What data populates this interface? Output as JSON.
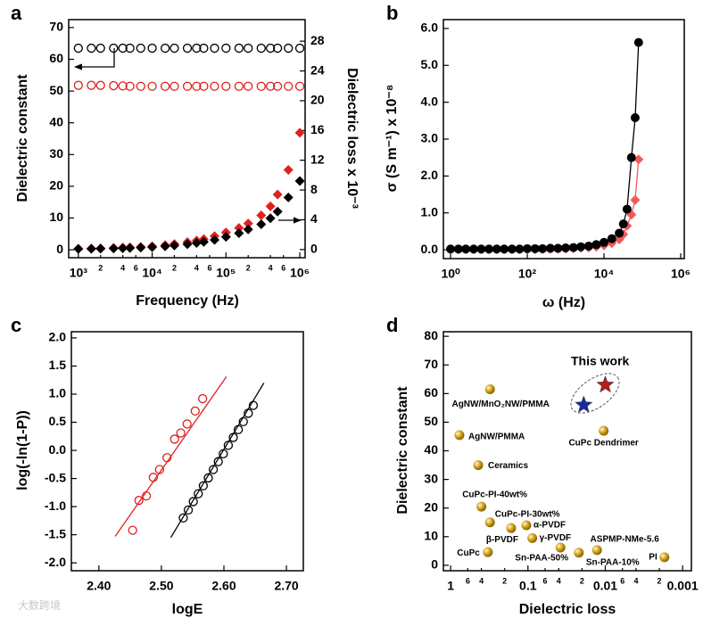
{
  "chart_data": [
    {
      "type": "scatter",
      "panel": "a",
      "xlabel": "Frequency (Hz)",
      "ylabel": "Dielectric constant",
      "y2label": "Dielectric loss x 10⁻³",
      "xlog": true,
      "xlim": [
        740,
        1180000
      ],
      "ylim": [
        -2.5,
        72.5
      ],
      "y2lim": [
        -1.1,
        30.9
      ],
      "xticks": [
        {
          "value": 1000,
          "label": "10³"
        },
        {
          "value": 2000,
          "label": "2"
        },
        {
          "value": 4000,
          "label": "4"
        },
        {
          "value": 6000,
          "label": "6"
        },
        {
          "value": 10000,
          "label": "10⁴"
        },
        {
          "value": 20000,
          "label": "2"
        },
        {
          "value": 40000,
          "label": "4"
        },
        {
          "value": 60000,
          "label": "6"
        },
        {
          "value": 100000,
          "label": "10⁵"
        },
        {
          "value": 200000,
          "label": "2"
        },
        {
          "value": 400000,
          "label": "4"
        },
        {
          "value": 600000,
          "label": "6"
        },
        {
          "value": 1000000,
          "label": "10⁶"
        }
      ],
      "yticks": [
        0,
        10,
        20,
        30,
        40,
        50,
        60,
        70
      ],
      "y2ticks": [
        0,
        4,
        8,
        12,
        16,
        20,
        24,
        28
      ],
      "x": [
        1000,
        1500,
        2000,
        3000,
        4000,
        5000,
        7000,
        10000,
        15000,
        20000,
        30000,
        40000,
        50000,
        70000,
        100000,
        150000,
        200000,
        300000,
        400000,
        500000,
        700000,
        1000000
      ],
      "series": [
        {
          "color": "#000000",
          "marker": "circle-open",
          "values": [
            63.5,
            63.5,
            63.5,
            63.5,
            63.5,
            63.5,
            63.5,
            63.5,
            63.5,
            63.5,
            63.5,
            63.5,
            63.5,
            63.5,
            63.5,
            63.5,
            63.5,
            63.5,
            63.5,
            63.5,
            63.5,
            63.5
          ]
        },
        {
          "color": "#e0221c",
          "marker": "circle-open",
          "values": [
            51.8,
            51.8,
            51.8,
            51.7,
            51.6,
            51.5,
            51.5,
            51.5,
            51.5,
            51.5,
            51.5,
            51.5,
            51.5,
            51.5,
            51.5,
            51.5,
            51.5,
            51.5,
            51.5,
            51.5,
            51.5,
            51.5
          ]
        },
        {
          "color": "#e0221c",
          "marker": "diamond",
          "axis": "y2",
          "values": [
            0.12,
            0.15,
            0.18,
            0.22,
            0.26,
            0.3,
            0.36,
            0.45,
            0.6,
            0.75,
            1.0,
            1.2,
            1.4,
            1.8,
            2.3,
            2.9,
            3.5,
            4.6,
            5.8,
            7.4,
            10.7,
            15.7
          ]
        },
        {
          "color": "#000000",
          "marker": "diamond",
          "axis": "y2",
          "values": [
            0.08,
            0.1,
            0.12,
            0.15,
            0.18,
            0.21,
            0.26,
            0.33,
            0.43,
            0.55,
            0.72,
            0.88,
            1.03,
            1.3,
            1.7,
            2.2,
            2.7,
            3.4,
            4.2,
            5.1,
            7.0,
            9.2
          ]
        }
      ]
    },
    {
      "type": "line",
      "panel": "b",
      "xlabel": "ω (Hz)",
      "ylabel": "σ (S m⁻¹) x 10⁻⁸",
      "xlog": true,
      "xlim": [
        0.65,
        1240000
      ],
      "ylim": [
        -0.24,
        6.24
      ],
      "xticks": [
        {
          "value": 1,
          "label": "10⁰"
        },
        {
          "value": 100,
          "label": "10²"
        },
        {
          "value": 10000,
          "label": "10⁴"
        },
        {
          "value": 1000000,
          "label": "10⁶"
        }
      ],
      "yticks": [
        {
          "value": 0,
          "label": "0.0"
        },
        {
          "value": 1,
          "label": "1.0"
        },
        {
          "value": 2,
          "label": "2.0"
        },
        {
          "value": 3,
          "label": "3.0"
        },
        {
          "value": 4,
          "label": "4.0"
        },
        {
          "value": 5,
          "label": "5.0"
        },
        {
          "value": 6,
          "label": "6.0"
        }
      ],
      "x": [
        1,
        1.6,
        2.5,
        4,
        6.3,
        10,
        16,
        25,
        40,
        63,
        100,
        160,
        250,
        400,
        630,
        1000,
        1600,
        2500,
        4000,
        6300,
        10000,
        16000,
        25000,
        32000,
        40000,
        52000,
        65000,
        80000
      ],
      "series": [
        {
          "color": "#f05a5a",
          "marker": "diamond",
          "connect": true,
          "values": [
            0.01,
            0.01,
            0.01,
            0.01,
            0.01,
            0.01,
            0.01,
            0.01,
            0.01,
            0.01,
            0.01,
            0.01,
            0.02,
            0.02,
            0.02,
            0.03,
            0.04,
            0.05,
            0.06,
            0.08,
            0.12,
            0.18,
            0.28,
            0.42,
            0.65,
            0.95,
            1.35,
            2.45
          ]
        },
        {
          "color": "#000000",
          "marker": "circle",
          "connect": true,
          "values": [
            0.02,
            0.02,
            0.02,
            0.02,
            0.02,
            0.02,
            0.02,
            0.02,
            0.02,
            0.02,
            0.03,
            0.03,
            0.03,
            0.04,
            0.04,
            0.05,
            0.06,
            0.08,
            0.1,
            0.14,
            0.2,
            0.3,
            0.45,
            0.7,
            1.1,
            2.5,
            3.58,
            5.62
          ]
        }
      ]
    },
    {
      "type": "scatter",
      "panel": "c",
      "xlabel": "logE",
      "ylabel": "log(-ln(1-P))",
      "xlog": false,
      "xlim": [
        2.356,
        2.727
      ],
      "ylim": [
        -2.14,
        2.11
      ],
      "xticks": [
        {
          "value": 2.4,
          "label": "2.40"
        },
        {
          "value": 2.5,
          "label": "2.50"
        },
        {
          "value": 2.6,
          "label": "2.60"
        },
        {
          "value": 2.7,
          "label": "2.70"
        }
      ],
      "yticks": [
        {
          "value": -2,
          "label": "-2.0"
        },
        {
          "value": -1.5,
          "label": "-1.5"
        },
        {
          "value": -1,
          "label": "-1.0"
        },
        {
          "value": -0.5,
          "label": "-0.5"
        },
        {
          "value": 0,
          "label": "0.0"
        },
        0.5,
        {
          "value": 1,
          "label": "1.0"
        },
        1.5,
        {
          "value": 2,
          "label": "2.0"
        }
      ],
      "series": [
        {
          "color": "#e02020",
          "marker": "circle-open",
          "x": [
            2.454,
            2.464,
            2.476,
            2.487,
            2.497,
            2.509,
            2.521,
            2.531,
            2.541,
            2.554,
            2.566
          ],
          "values": [
            -1.42,
            -0.89,
            -0.81,
            -0.48,
            -0.34,
            -0.13,
            0.2,
            0.31,
            0.47,
            0.7,
            0.92
          ]
        },
        {
          "color": "#000000",
          "marker": "circle-open",
          "x": [
            2.535,
            2.543,
            2.551,
            2.559,
            2.567,
            2.575,
            2.583,
            2.591,
            2.599,
            2.607,
            2.615,
            2.623,
            2.631,
            2.639,
            2.647
          ],
          "values": [
            -1.2,
            -1.06,
            -0.91,
            -0.77,
            -0.63,
            -0.49,
            -0.34,
            -0.2,
            -0.06,
            0.09,
            0.23,
            0.37,
            0.51,
            0.66,
            0.8
          ]
        },
        {
          "color": "#e02020",
          "marker": "none",
          "connect": true,
          "x": [
            2.426,
            2.604
          ],
          "values": [
            -1.53,
            1.31
          ]
        },
        {
          "color": "#000000",
          "marker": "none",
          "connect": true,
          "x": [
            2.515,
            2.664
          ],
          "values": [
            -1.55,
            1.2
          ]
        }
      ]
    },
    {
      "type": "scatter",
      "panel": "d",
      "xlabel": "Dielectric loss",
      "ylabel": "Dielectric constant",
      "annotation": "This work",
      "xlog": true,
      "xlim": [
        1.24,
        0.00077
      ],
      "ylim": [
        -1.9,
        81.6
      ],
      "xticks": [
        1,
        {
          "value": 0.6,
          "label": "6"
        },
        {
          "value": 0.4,
          "label": "4"
        },
        {
          "value": 0.2,
          "label": "2"
        },
        0.1,
        {
          "value": 0.06,
          "label": "6"
        },
        {
          "value": 0.04,
          "label": "4"
        },
        {
          "value": 0.02,
          "label": "2"
        },
        0.01,
        {
          "value": 0.006,
          "label": "6"
        },
        {
          "value": 0.004,
          "label": "4"
        },
        {
          "value": 0.002,
          "label": "2"
        },
        0.001
      ],
      "yticks": [
        0,
        10,
        20,
        30,
        40,
        50,
        60,
        70,
        80
      ],
      "series": [
        {
          "color": "#d4a017",
          "marker": "sphere",
          "labels": [
            "AgNW/MnO₂NW/PMMA",
            "AgNW/PMMA",
            "Ceramics",
            "CuPc-PI-40wt%",
            "CuPc-PI-30wt%",
            "β-PVDF",
            "α-PVDF",
            "γ-PVDF",
            "CuPc",
            "Sn-PAA-50%",
            "Sn-PAA-10%",
            "ASPMP-NMe-5.6",
            "PI",
            "CuPc Dendrimer"
          ],
          "x": [
            0.31,
            0.77,
            0.44,
            0.4,
            0.31,
            0.165,
            0.105,
            0.088,
            0.33,
            0.038,
            0.022,
            0.0128,
            0.00172,
            0.0105
          ],
          "values": [
            61.5,
            45.5,
            35,
            20.5,
            15,
            13,
            14,
            9.5,
            4.6,
            6.2,
            4.4,
            5.3,
            2.8,
            47
          ]
        },
        {
          "marker": "star",
          "colors": [
            "#b02020",
            "#1a2a9a"
          ],
          "x": [
            0.01,
            0.019
          ],
          "values": [
            63,
            56
          ]
        }
      ]
    }
  ],
  "watermark": "大数跨境"
}
